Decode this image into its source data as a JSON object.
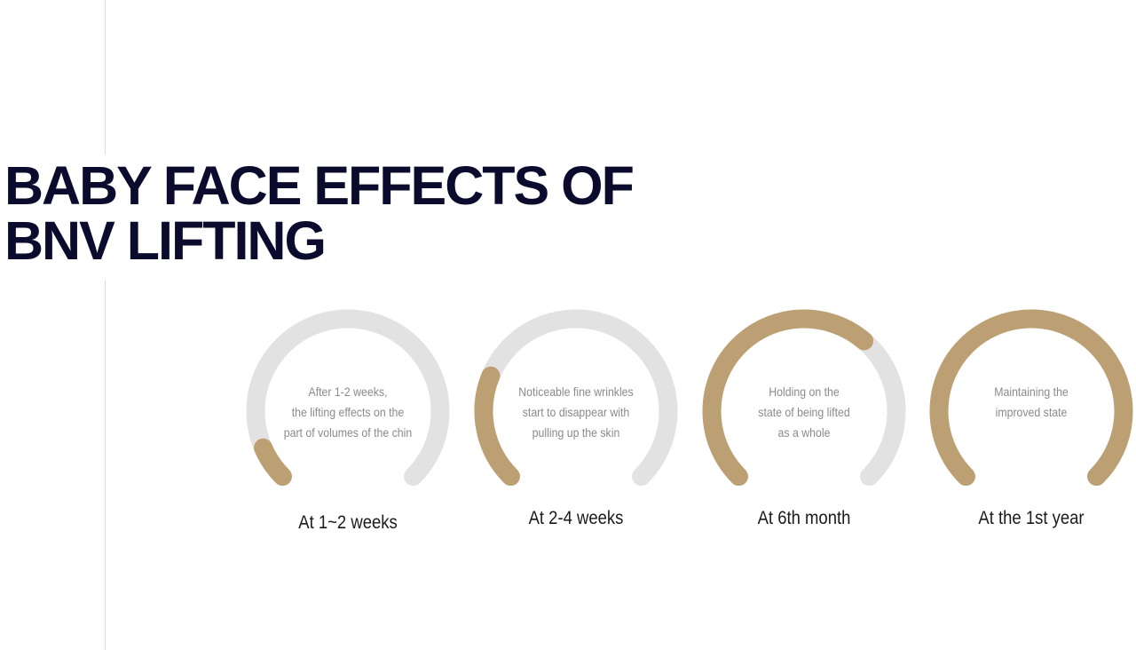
{
  "title": {
    "line1": "BABY FACE EFFECTS OF",
    "line2": "BNV LIFTING"
  },
  "colors": {
    "title": "#0b0b2e",
    "progress": "#bca073",
    "track": "#e2e2e2",
    "divider": "#e6d8c3"
  },
  "stages": [
    {
      "label": "At 1~2 weeks",
      "description": [
        "After 1-2 weeks,",
        "the lifting effects on the",
        "part of volumes of the chin"
      ],
      "progress": 0.08
    },
    {
      "label": "At 2-4 weeks",
      "description": [
        "Noticeable fine wrinkles",
        "start to disappear with",
        "pulling up the skin"
      ],
      "progress": 0.25
    },
    {
      "label": "At 6th month",
      "description": [
        "Holding on the",
        "state of being lifted",
        "as a whole"
      ],
      "progress": 0.65
    },
    {
      "label": "At the 1st year",
      "description": [
        "Maintaining the",
        "improved state"
      ],
      "progress": 1.0
    }
  ]
}
